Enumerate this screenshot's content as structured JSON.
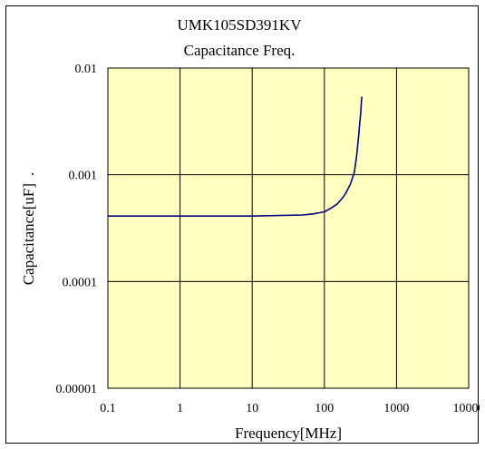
{
  "chart_data": {
    "type": "line",
    "title": "UMK105SD391KV",
    "subtitle": "Capacitance Freq.",
    "xlabel": "Frequency[MHz]",
    "ylabel": "Capacitance[uF]",
    "ylabel_suffix": ".",
    "x_scale": "log",
    "y_scale": "log",
    "xlim": [
      0.1,
      10000
    ],
    "ylim": [
      1e-05,
      0.01
    ],
    "x_ticks": [
      "0.1",
      "1",
      "10",
      "100",
      "1000",
      "10000"
    ],
    "y_ticks": [
      "0.00001",
      "0.0001",
      "0.001",
      "0.01"
    ],
    "grid": true,
    "plot_background": "#ffffc0",
    "series": [
      {
        "color": "#000080",
        "x": [
          0.1,
          1,
          10,
          50,
          70,
          100,
          120,
          150,
          180,
          200,
          230,
          260,
          280,
          290,
          300,
          310,
          320,
          325,
          330
        ],
        "y": [
          0.00041,
          0.00041,
          0.00041,
          0.00042,
          0.00043,
          0.00045,
          0.00048,
          0.00053,
          0.00061,
          0.00068,
          0.00082,
          0.00105,
          0.0015,
          0.0019,
          0.0024,
          0.0031,
          0.0039,
          0.0046,
          0.0054
        ]
      }
    ]
  }
}
